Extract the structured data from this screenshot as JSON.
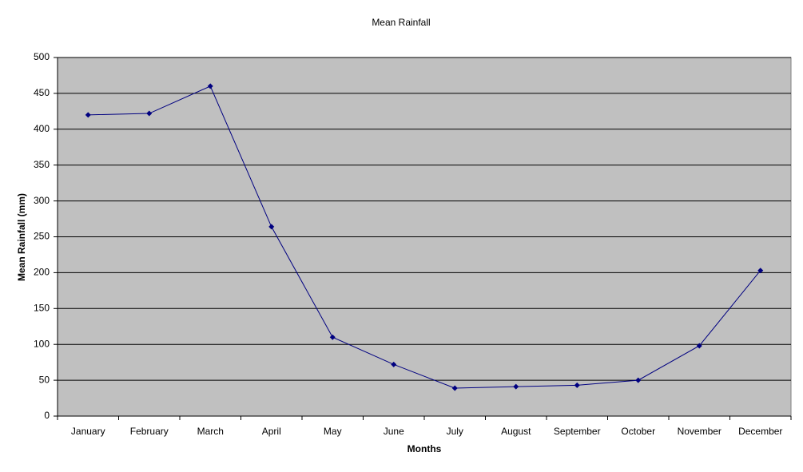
{
  "chart_data": {
    "type": "line",
    "title": "Mean Rainfall",
    "x_label": "Months",
    "y_label": "Mean Rainfall (mm)",
    "categories": [
      "January",
      "February",
      "March",
      "April",
      "May",
      "June",
      "July",
      "August",
      "September",
      "October",
      "November",
      "December"
    ],
    "series": [
      {
        "name": "Mean Rainfall",
        "color": "#000080",
        "values": [
          420,
          422,
          460,
          264,
          110,
          72,
          39,
          41,
          43,
          50,
          98,
          203
        ]
      }
    ],
    "ylim": [
      0,
      500
    ],
    "yticks": [
      0,
      50,
      100,
      150,
      200,
      250,
      300,
      350,
      400,
      450,
      500
    ],
    "grid": true,
    "plot_background": "#c0c0c0"
  }
}
